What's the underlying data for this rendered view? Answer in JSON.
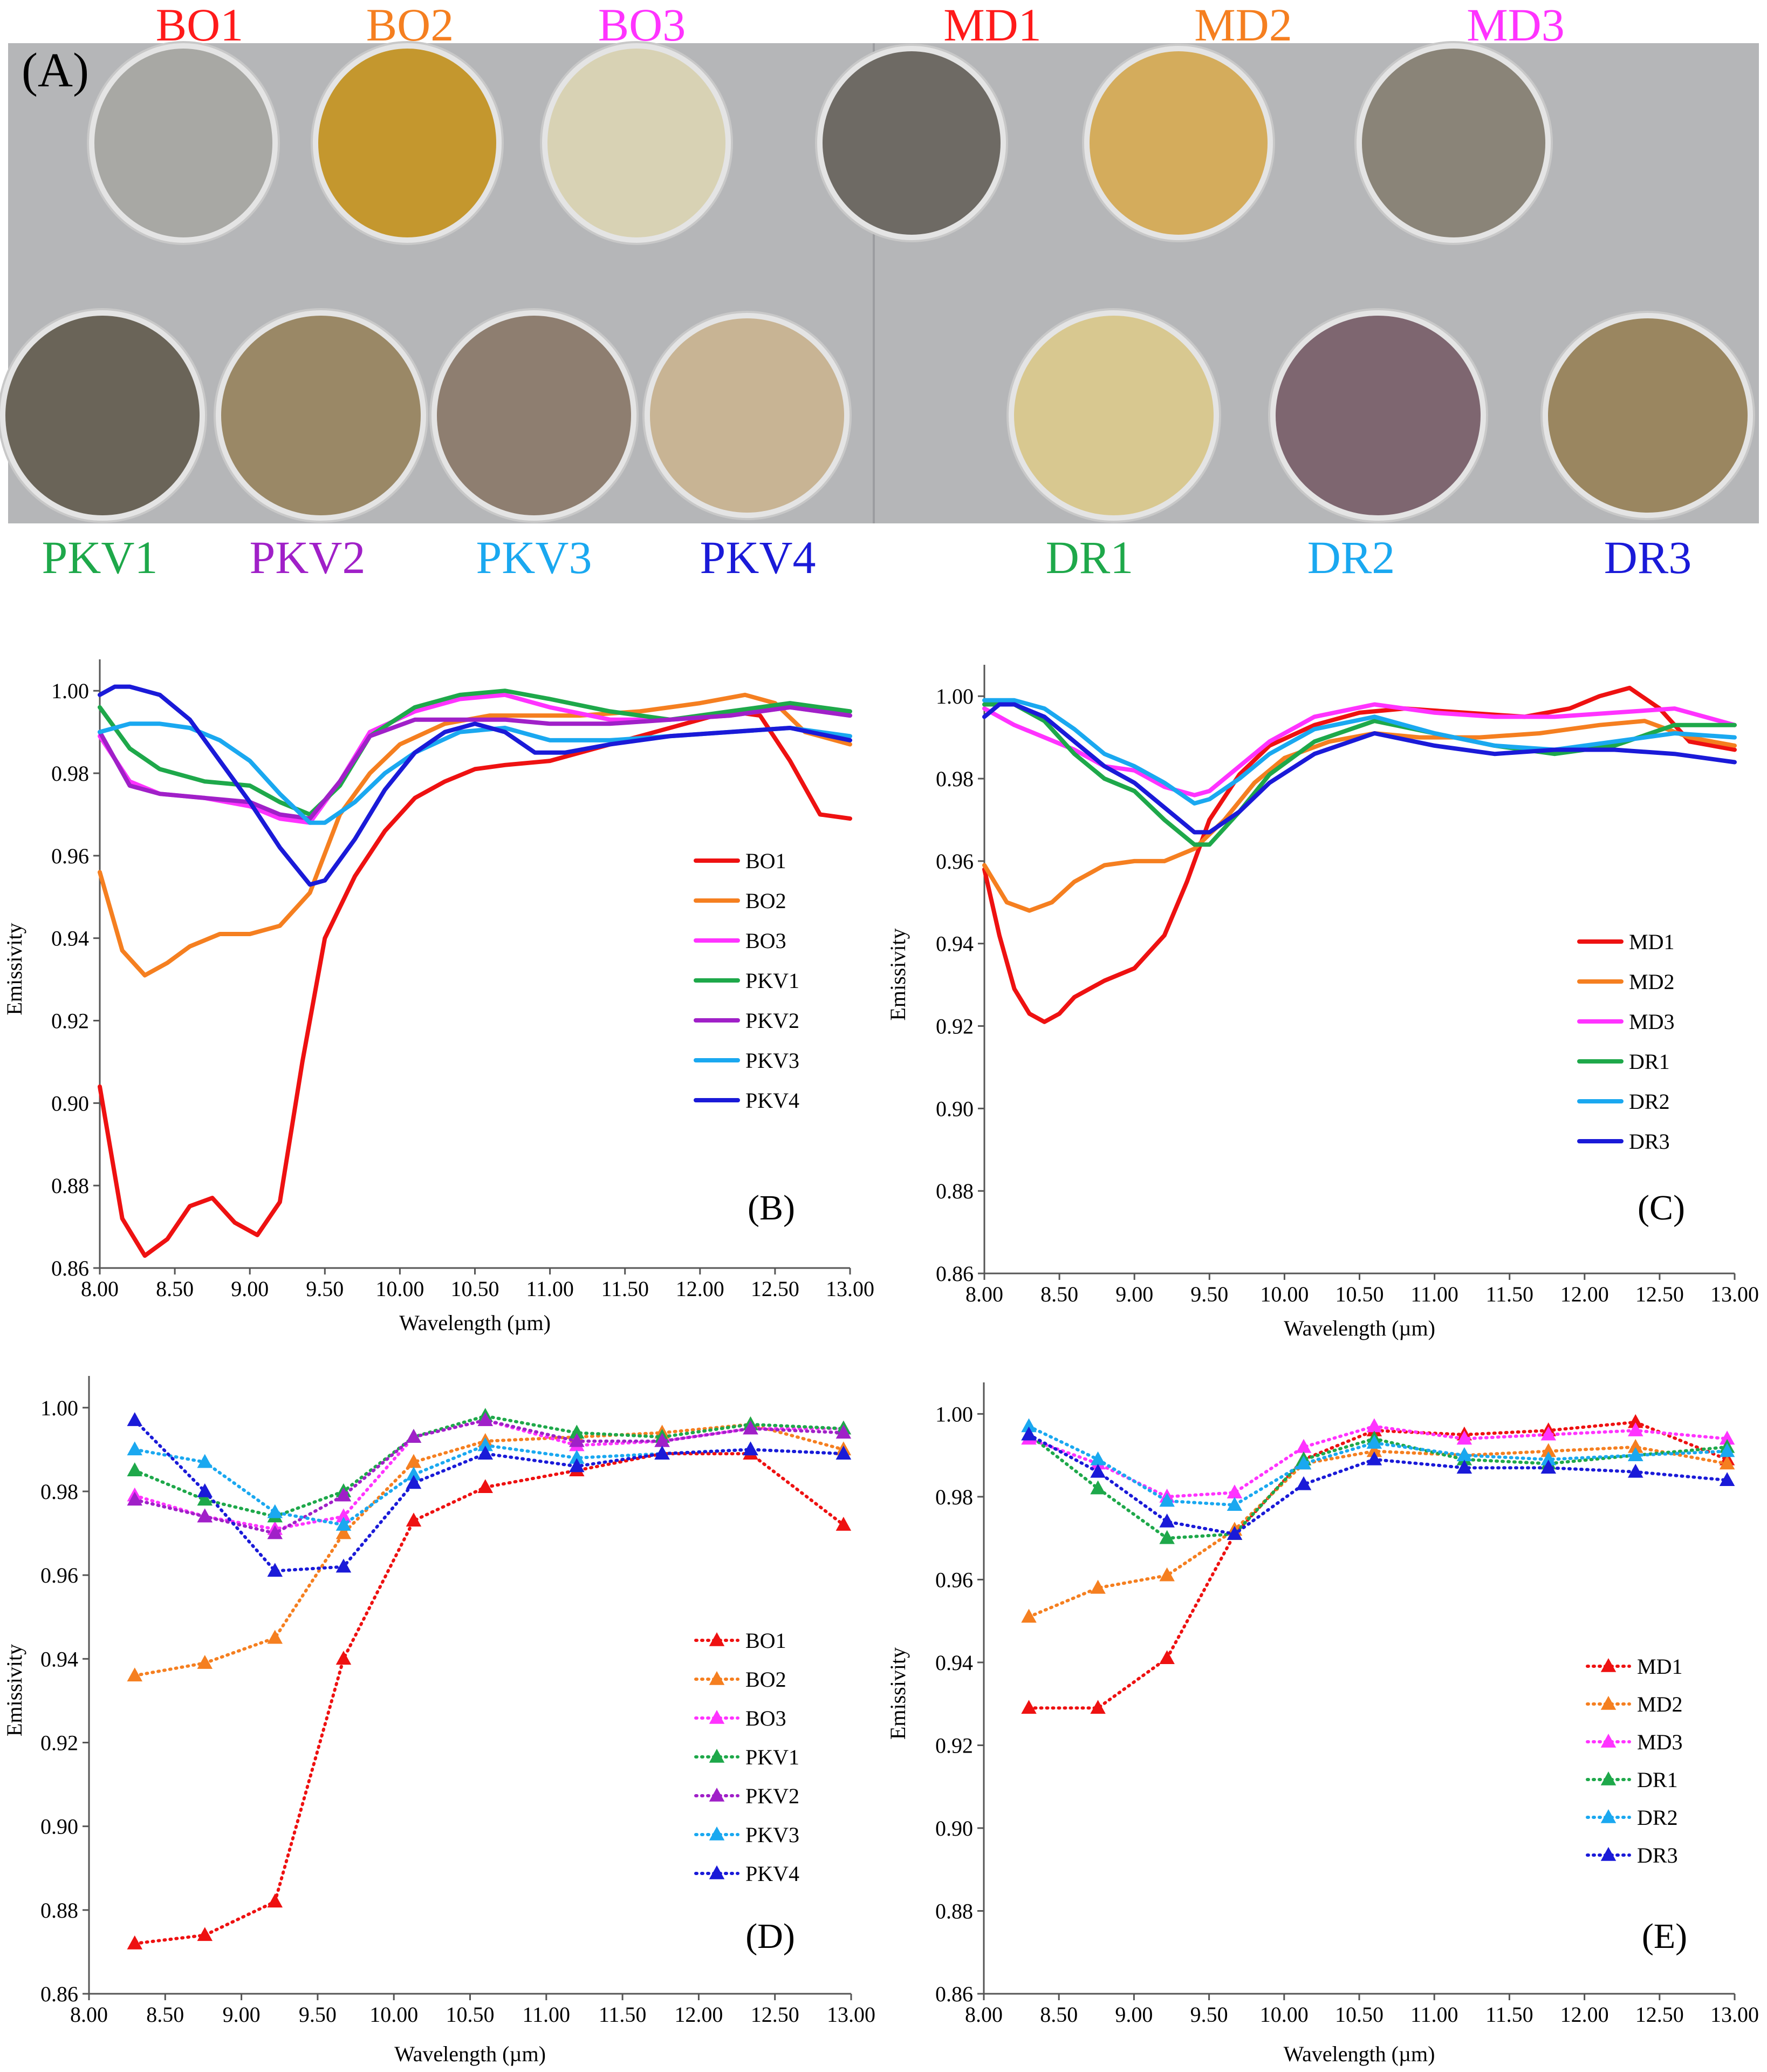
{
  "panel_a": {
    "label": "(A)",
    "top_labels": [
      {
        "text": "BO1",
        "color": "#ff1a1a"
      },
      {
        "text": "BO2",
        "color": "#f57f20"
      },
      {
        "text": "BO3",
        "color": "#ff33ff"
      },
      {
        "text": "MD1",
        "color": "#ff1a1a"
      },
      {
        "text": "MD2",
        "color": "#f57f20"
      },
      {
        "text": "MD3",
        "color": "#ff33ff"
      }
    ],
    "bottom_labels": [
      {
        "text": "PKV1",
        "color": "#1ea84a"
      },
      {
        "text": "PKV2",
        "color": "#a020c8"
      },
      {
        "text": "PKV3",
        "color": "#1aa8f0"
      },
      {
        "text": "PKV4",
        "color": "#1a1ad8"
      },
      {
        "text": "DR1",
        "color": "#1ea84a"
      },
      {
        "text": "DR2",
        "color": "#1aa8f0"
      },
      {
        "text": "DR3",
        "color": "#1a1ad8"
      }
    ],
    "sample_colors": [
      "#a8a8a4",
      "#c4972e",
      "#d8d2b4",
      "#6e6a64",
      "#d4ac5c",
      "#8a8478",
      "#6a6458",
      "#9a8866",
      "#8e7e70",
      "#c8b494",
      "#d8c890",
      "#7e6670",
      "#9a8660"
    ]
  },
  "chart_data": [
    {
      "id": "B",
      "panel_label": "(B)",
      "type": "line",
      "xlabel": "Wavelength (µm)",
      "ylabel": "Emissivity",
      "xlim": [
        8.0,
        13.0
      ],
      "ylim": [
        0.86,
        1.005
      ],
      "xticks": [
        "8.00",
        "8.50",
        "9.00",
        "9.50",
        "10.00",
        "10.50",
        "11.00",
        "11.50",
        "12.00",
        "12.50",
        "13.00"
      ],
      "yticks": [
        "0.86",
        "0.88",
        "0.90",
        "0.92",
        "0.94",
        "0.96",
        "0.98",
        "1.00"
      ],
      "legend_position": "right",
      "series": [
        {
          "name": "BO1",
          "color": "#ee1111",
          "x": [
            8.0,
            8.15,
            8.3,
            8.45,
            8.6,
            8.75,
            8.9,
            9.05,
            9.2,
            9.35,
            9.5,
            9.7,
            9.9,
            10.1,
            10.3,
            10.5,
            10.7,
            11.0,
            11.3,
            11.6,
            11.9,
            12.2,
            12.4,
            12.6,
            12.8,
            13.0
          ],
          "y": [
            0.904,
            0.872,
            0.863,
            0.867,
            0.875,
            0.877,
            0.871,
            0.868,
            0.876,
            0.91,
            0.94,
            0.955,
            0.966,
            0.974,
            0.978,
            0.981,
            0.982,
            0.983,
            0.986,
            0.989,
            0.992,
            0.995,
            0.994,
            0.983,
            0.97,
            0.969
          ]
        },
        {
          "name": "BO2",
          "color": "#f57f20",
          "x": [
            8.0,
            8.15,
            8.3,
            8.45,
            8.6,
            8.8,
            9.0,
            9.2,
            9.4,
            9.6,
            9.8,
            10.0,
            10.3,
            10.6,
            10.9,
            11.2,
            11.6,
            12.0,
            12.3,
            12.5,
            12.7,
            13.0
          ],
          "y": [
            0.956,
            0.937,
            0.931,
            0.934,
            0.938,
            0.941,
            0.941,
            0.943,
            0.951,
            0.97,
            0.98,
            0.987,
            0.992,
            0.994,
            0.994,
            0.994,
            0.995,
            0.997,
            0.999,
            0.997,
            0.99,
            0.987
          ]
        },
        {
          "name": "BO3",
          "color": "#ff33ff",
          "x": [
            8.0,
            8.2,
            8.4,
            8.7,
            9.0,
            9.2,
            9.4,
            9.6,
            9.8,
            10.1,
            10.4,
            10.7,
            11.0,
            11.4,
            11.8,
            12.2,
            12.6,
            13.0
          ],
          "y": [
            0.989,
            0.978,
            0.975,
            0.974,
            0.972,
            0.969,
            0.968,
            0.978,
            0.99,
            0.995,
            0.998,
            0.999,
            0.996,
            0.993,
            0.993,
            0.994,
            0.996,
            0.994
          ]
        },
        {
          "name": "PKV1",
          "color": "#1ea84a",
          "x": [
            8.0,
            8.2,
            8.4,
            8.7,
            9.0,
            9.2,
            9.4,
            9.6,
            9.8,
            10.1,
            10.4,
            10.7,
            11.0,
            11.4,
            11.8,
            12.2,
            12.6,
            13.0
          ],
          "y": [
            0.996,
            0.986,
            0.981,
            0.978,
            0.977,
            0.973,
            0.97,
            0.977,
            0.989,
            0.996,
            0.999,
            1.0,
            0.998,
            0.995,
            0.993,
            0.995,
            0.997,
            0.995
          ]
        },
        {
          "name": "PKV2",
          "color": "#a020c8",
          "x": [
            8.0,
            8.2,
            8.4,
            8.7,
            9.0,
            9.2,
            9.4,
            9.6,
            9.8,
            10.1,
            10.4,
            10.7,
            11.0,
            11.4,
            11.8,
            12.2,
            12.6,
            13.0
          ],
          "y": [
            0.99,
            0.977,
            0.975,
            0.974,
            0.973,
            0.97,
            0.969,
            0.978,
            0.989,
            0.993,
            0.993,
            0.993,
            0.992,
            0.992,
            0.993,
            0.994,
            0.996,
            0.994
          ]
        },
        {
          "name": "PKV3",
          "color": "#1aa8f0",
          "x": [
            8.0,
            8.2,
            8.4,
            8.6,
            8.8,
            9.0,
            9.2,
            9.4,
            9.5,
            9.7,
            9.9,
            10.1,
            10.4,
            10.7,
            11.0,
            11.4,
            11.8,
            12.2,
            12.6,
            13.0
          ],
          "y": [
            0.99,
            0.992,
            0.992,
            0.991,
            0.988,
            0.983,
            0.975,
            0.968,
            0.968,
            0.973,
            0.98,
            0.985,
            0.99,
            0.991,
            0.988,
            0.988,
            0.989,
            0.99,
            0.991,
            0.989
          ]
        },
        {
          "name": "PKV4",
          "color": "#1a1ad8",
          "x": [
            8.0,
            8.1,
            8.2,
            8.4,
            8.6,
            8.8,
            9.0,
            9.2,
            9.4,
            9.5,
            9.7,
            9.9,
            10.1,
            10.3,
            10.5,
            10.7,
            10.9,
            11.1,
            11.4,
            11.8,
            12.2,
            12.6,
            13.0
          ],
          "y": [
            0.999,
            1.001,
            1.001,
            0.999,
            0.993,
            0.983,
            0.973,
            0.962,
            0.953,
            0.954,
            0.964,
            0.976,
            0.985,
            0.99,
            0.992,
            0.99,
            0.985,
            0.985,
            0.987,
            0.989,
            0.99,
            0.991,
            0.988
          ]
        }
      ]
    },
    {
      "id": "C",
      "panel_label": "(C)",
      "type": "line",
      "xlabel": "Wavelength (µm)",
      "ylabel": "Emissivity",
      "xlim": [
        8.0,
        13.0
      ],
      "ylim": [
        0.86,
        1.005
      ],
      "xticks": [
        "8.00",
        "8.50",
        "9.00",
        "9.50",
        "10.00",
        "10.50",
        "11.00",
        "11.50",
        "12.00",
        "12.50",
        "13.00"
      ],
      "yticks": [
        "0.86",
        "0.88",
        "0.90",
        "0.92",
        "0.94",
        "0.96",
        "0.98",
        "1.00"
      ],
      "legend_position": "right",
      "series": [
        {
          "name": "MD1",
          "color": "#ee1111",
          "x": [
            8.0,
            8.1,
            8.2,
            8.3,
            8.4,
            8.5,
            8.6,
            8.8,
            9.0,
            9.2,
            9.35,
            9.5,
            9.7,
            9.9,
            10.2,
            10.5,
            10.8,
            11.2,
            11.6,
            11.9,
            12.1,
            12.3,
            12.5,
            12.7,
            13.0
          ],
          "y": [
            0.958,
            0.942,
            0.929,
            0.923,
            0.921,
            0.923,
            0.927,
            0.931,
            0.934,
            0.942,
            0.955,
            0.97,
            0.981,
            0.988,
            0.993,
            0.996,
            0.997,
            0.996,
            0.995,
            0.997,
            1.0,
            1.002,
            0.997,
            0.989,
            0.987
          ]
        },
        {
          "name": "MD2",
          "color": "#f57f20",
          "x": [
            8.0,
            8.15,
            8.3,
            8.45,
            8.6,
            8.8,
            9.0,
            9.2,
            9.4,
            9.6,
            9.8,
            10.0,
            10.3,
            10.6,
            10.9,
            11.3,
            11.7,
            12.1,
            12.4,
            12.7,
            13.0
          ],
          "y": [
            0.959,
            0.95,
            0.948,
            0.95,
            0.955,
            0.959,
            0.96,
            0.96,
            0.963,
            0.97,
            0.979,
            0.985,
            0.989,
            0.991,
            0.99,
            0.99,
            0.991,
            0.993,
            0.994,
            0.99,
            0.988
          ]
        },
        {
          "name": "MD3",
          "color": "#ff33ff",
          "x": [
            8.0,
            8.2,
            8.4,
            8.6,
            8.8,
            9.0,
            9.2,
            9.4,
            9.5,
            9.7,
            9.9,
            10.2,
            10.6,
            11.0,
            11.4,
            11.8,
            12.2,
            12.6,
            13.0
          ],
          "y": [
            0.997,
            0.993,
            0.99,
            0.987,
            0.983,
            0.982,
            0.978,
            0.976,
            0.977,
            0.983,
            0.989,
            0.995,
            0.998,
            0.996,
            0.995,
            0.995,
            0.996,
            0.997,
            0.993
          ]
        },
        {
          "name": "DR1",
          "color": "#1ea84a",
          "x": [
            8.0,
            8.2,
            8.4,
            8.6,
            8.8,
            9.0,
            9.2,
            9.4,
            9.5,
            9.7,
            9.9,
            10.2,
            10.6,
            11.0,
            11.4,
            11.8,
            12.2,
            12.6,
            13.0
          ],
          "y": [
            0.998,
            0.998,
            0.994,
            0.986,
            0.98,
            0.977,
            0.97,
            0.964,
            0.964,
            0.972,
            0.981,
            0.989,
            0.994,
            0.991,
            0.988,
            0.986,
            0.988,
            0.993,
            0.993
          ]
        },
        {
          "name": "DR2",
          "color": "#1aa8f0",
          "x": [
            8.0,
            8.2,
            8.4,
            8.6,
            8.8,
            9.0,
            9.2,
            9.4,
            9.5,
            9.7,
            9.9,
            10.2,
            10.6,
            11.0,
            11.4,
            11.8,
            12.2,
            12.6,
            13.0
          ],
          "y": [
            0.999,
            0.999,
            0.997,
            0.992,
            0.986,
            0.983,
            0.979,
            0.974,
            0.975,
            0.98,
            0.986,
            0.992,
            0.995,
            0.991,
            0.988,
            0.987,
            0.989,
            0.991,
            0.99
          ]
        },
        {
          "name": "DR3",
          "color": "#1a1ad8",
          "x": [
            8.0,
            8.1,
            8.2,
            8.4,
            8.6,
            8.8,
            9.0,
            9.2,
            9.4,
            9.5,
            9.7,
            9.9,
            10.2,
            10.6,
            11.0,
            11.4,
            11.8,
            12.2,
            12.6,
            13.0
          ],
          "y": [
            0.995,
            0.998,
            0.998,
            0.995,
            0.989,
            0.983,
            0.979,
            0.973,
            0.967,
            0.967,
            0.972,
            0.979,
            0.986,
            0.991,
            0.988,
            0.986,
            0.987,
            0.987,
            0.986,
            0.984
          ]
        }
      ]
    },
    {
      "id": "D",
      "panel_label": "(D)",
      "type": "line",
      "marker": "triangle",
      "line_style": "dotted",
      "xlabel": "Wavelength (µm)",
      "ylabel": "Emissivity",
      "xlim": [
        8.0,
        13.0
      ],
      "ylim": [
        0.86,
        1.005
      ],
      "xticks": [
        "8.00",
        "8.50",
        "9.00",
        "9.50",
        "10.00",
        "10.50",
        "11.00",
        "11.50",
        "12.00",
        "12.50",
        "13.00"
      ],
      "yticks": [
        "0.86",
        "0.88",
        "0.90",
        "0.92",
        "0.94",
        "0.96",
        "0.98",
        "1.00"
      ],
      "legend_position": "right",
      "x": [
        8.3,
        8.76,
        9.22,
        9.67,
        10.13,
        10.6,
        11.2,
        11.76,
        12.34,
        12.95
      ],
      "series": [
        {
          "name": "BO1",
          "color": "#ee1111",
          "y": [
            0.872,
            0.874,
            0.882,
            0.94,
            0.973,
            0.981,
            0.985,
            0.989,
            0.989,
            0.972
          ]
        },
        {
          "name": "BO2",
          "color": "#f57f20",
          "y": [
            0.936,
            0.939,
            0.945,
            0.97,
            0.987,
            0.992,
            0.993,
            0.994,
            0.996,
            0.99
          ]
        },
        {
          "name": "BO3",
          "color": "#ff33ff",
          "y": [
            0.979,
            0.974,
            0.971,
            0.974,
            0.993,
            0.997,
            0.991,
            0.992,
            0.995,
            0.995
          ]
        },
        {
          "name": "PKV1",
          "color": "#1ea84a",
          "y": [
            0.985,
            0.978,
            0.974,
            0.98,
            0.993,
            0.998,
            0.994,
            0.993,
            0.996,
            0.995
          ]
        },
        {
          "name": "PKV2",
          "color": "#a020c8",
          "y": [
            0.978,
            0.974,
            0.97,
            0.979,
            0.993,
            0.997,
            0.992,
            0.992,
            0.995,
            0.994
          ]
        },
        {
          "name": "PKV3",
          "color": "#1aa8f0",
          "y": [
            0.99,
            0.987,
            0.975,
            0.972,
            0.984,
            0.991,
            0.988,
            0.989,
            0.99,
            0.989
          ]
        },
        {
          "name": "PKV4",
          "color": "#1a1ad8",
          "y": [
            0.997,
            0.98,
            0.961,
            0.962,
            0.982,
            0.989,
            0.986,
            0.989,
            0.99,
            0.989
          ]
        }
      ]
    },
    {
      "id": "E",
      "panel_label": "(E)",
      "type": "line",
      "marker": "triangle",
      "line_style": "dotted",
      "xlabel": "Wavelength (µm)",
      "ylabel": "Emissivity",
      "xlim": [
        8.0,
        13.0
      ],
      "ylim": [
        0.86,
        1.005
      ],
      "xticks": [
        "8.00",
        "8.50",
        "9.00",
        "9.50",
        "10.00",
        "10.50",
        "11.00",
        "11.50",
        "12.00",
        "12.50",
        "13.00"
      ],
      "yticks": [
        "0.86",
        "0.88",
        "0.90",
        "0.92",
        "0.94",
        "0.96",
        "0.98",
        "1.00"
      ],
      "legend_position": "right",
      "x": [
        8.3,
        8.76,
        9.22,
        9.67,
        10.13,
        10.6,
        11.2,
        11.76,
        12.34,
        12.95
      ],
      "series": [
        {
          "name": "MD1",
          "color": "#ee1111",
          "y": [
            0.929,
            0.929,
            0.941,
            0.971,
            0.989,
            0.996,
            0.995,
            0.996,
            0.998,
            0.989
          ]
        },
        {
          "name": "MD2",
          "color": "#f57f20",
          "y": [
            0.951,
            0.958,
            0.961,
            0.972,
            0.988,
            0.991,
            0.99,
            0.991,
            0.992,
            0.988
          ]
        },
        {
          "name": "MD3",
          "color": "#ff33ff",
          "y": [
            0.994,
            0.988,
            0.98,
            0.981,
            0.992,
            0.997,
            0.994,
            0.995,
            0.996,
            0.994
          ]
        },
        {
          "name": "DR1",
          "color": "#1ea84a",
          "y": [
            0.995,
            0.982,
            0.97,
            0.971,
            0.989,
            0.994,
            0.989,
            0.988,
            0.99,
            0.992
          ]
        },
        {
          "name": "DR2",
          "color": "#1aa8f0",
          "y": [
            0.997,
            0.989,
            0.979,
            0.978,
            0.988,
            0.993,
            0.99,
            0.989,
            0.99,
            0.991
          ]
        },
        {
          "name": "DR3",
          "color": "#1a1ad8",
          "y": [
            0.995,
            0.986,
            0.974,
            0.971,
            0.983,
            0.989,
            0.987,
            0.987,
            0.986,
            0.984
          ]
        }
      ]
    }
  ]
}
